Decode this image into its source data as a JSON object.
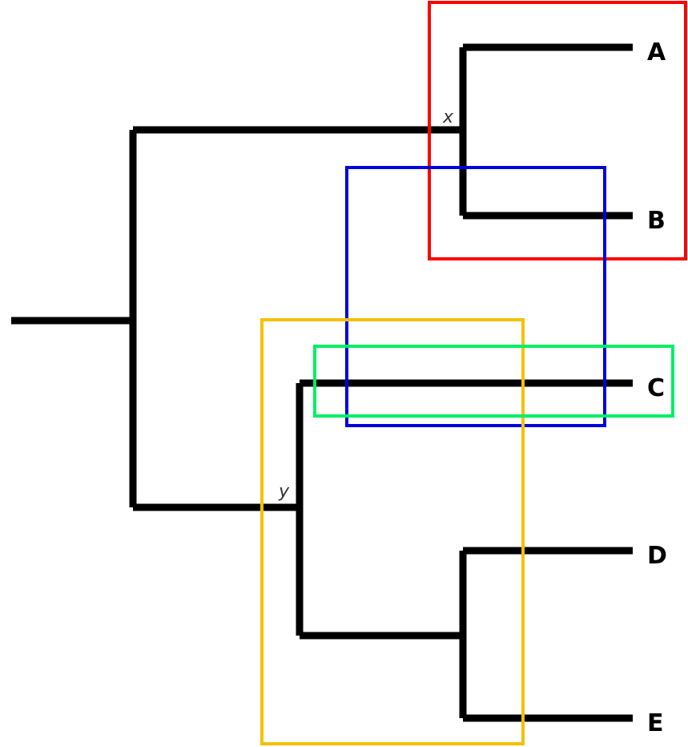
{
  "tree": {
    "tips": [
      "A",
      "B",
      "C",
      "D",
      "E"
    ],
    "internal_nodes": [
      "x",
      "y"
    ],
    "branch_color": "#000000"
  },
  "groupings": [
    {
      "color": "#ff0000",
      "members": [
        "A",
        "B"
      ]
    },
    {
      "color": "#0000dd",
      "members": [
        "B",
        "C"
      ]
    },
    {
      "color": "#00ee66",
      "members": [
        "C"
      ]
    },
    {
      "color": "#f5c000",
      "members": [
        "C",
        "D",
        "E"
      ]
    }
  ]
}
